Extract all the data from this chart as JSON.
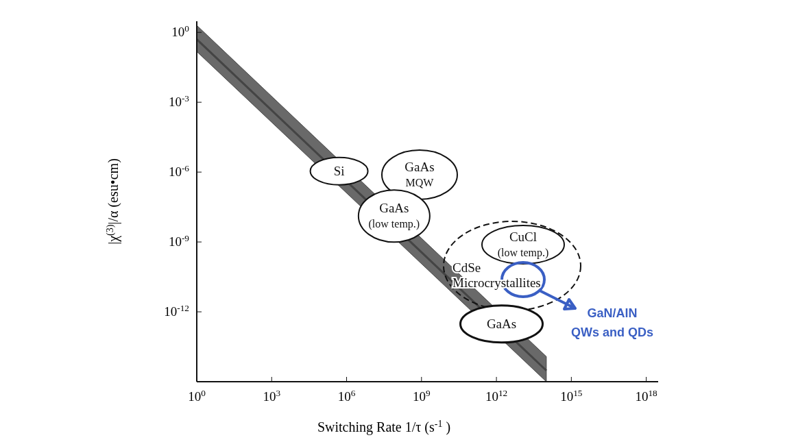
{
  "chart_data": {
    "type": "line",
    "log": "xy",
    "xlabel": "Switching Rate 1/τ (s$^{-1}$ )",
    "ylabel": "|χ$^{(3)}$|/α (esu•cm)",
    "xlim": [
      1,
      3e+18
    ],
    "ylim": [
      1e-15,
      3
    ],
    "xticks": [
      {
        "value": 1,
        "label": "10$^{0}$"
      },
      {
        "value": 1000.0,
        "label": "10$^{3}$"
      },
      {
        "value": 1000000.0,
        "label": "10$^{6}$"
      },
      {
        "value": 1000000000.0,
        "label": "10$^{9}$"
      },
      {
        "value": 1000000000000.0,
        "label": "10$^{12}$"
      },
      {
        "value": 1000000000000000.0,
        "label": "10$^{15}$"
      },
      {
        "value": 1e+18,
        "label": "10$^{18}$"
      }
    ],
    "yticks": [
      {
        "value": 1,
        "label": "10$^{0}$"
      },
      {
        "value": 0.001,
        "label": "10$^{-3}$"
      },
      {
        "value": 1e-06,
        "label": "10$^{-6}$"
      },
      {
        "value": 1e-09,
        "label": "10$^{-9}$"
      },
      {
        "value": 1e-12,
        "label": "10$^{-12}$"
      }
    ],
    "series": [
      {
        "color": "#444444",
        "x": [
          1,
          100000000000000.0
        ],
        "values": [
          0.5,
          3e-15
        ],
        "lower": [
          0.15,
          1e-15
        ],
        "upper": [
          2,
          1.2e-14
        ]
      }
    ],
    "annotations": [
      {
        "text": "Si",
        "x": 500000.0,
        "y": 1.1e-06
      },
      "GaAs\nMQW",
      {
        "text": "GaAs\n(low temp.)",
        "x": 80000000.0,
        "y": 1.3e-08
      },
      "CuCl\n(low temp.)",
      "CdSe\nMicrocrystallites",
      {
        "text": "GaAs",
        "x": 1600000000000.0,
        "y": 3e-13
      },
      "GaN/AlN\nQWs and QDs"
    ]
  }
}
